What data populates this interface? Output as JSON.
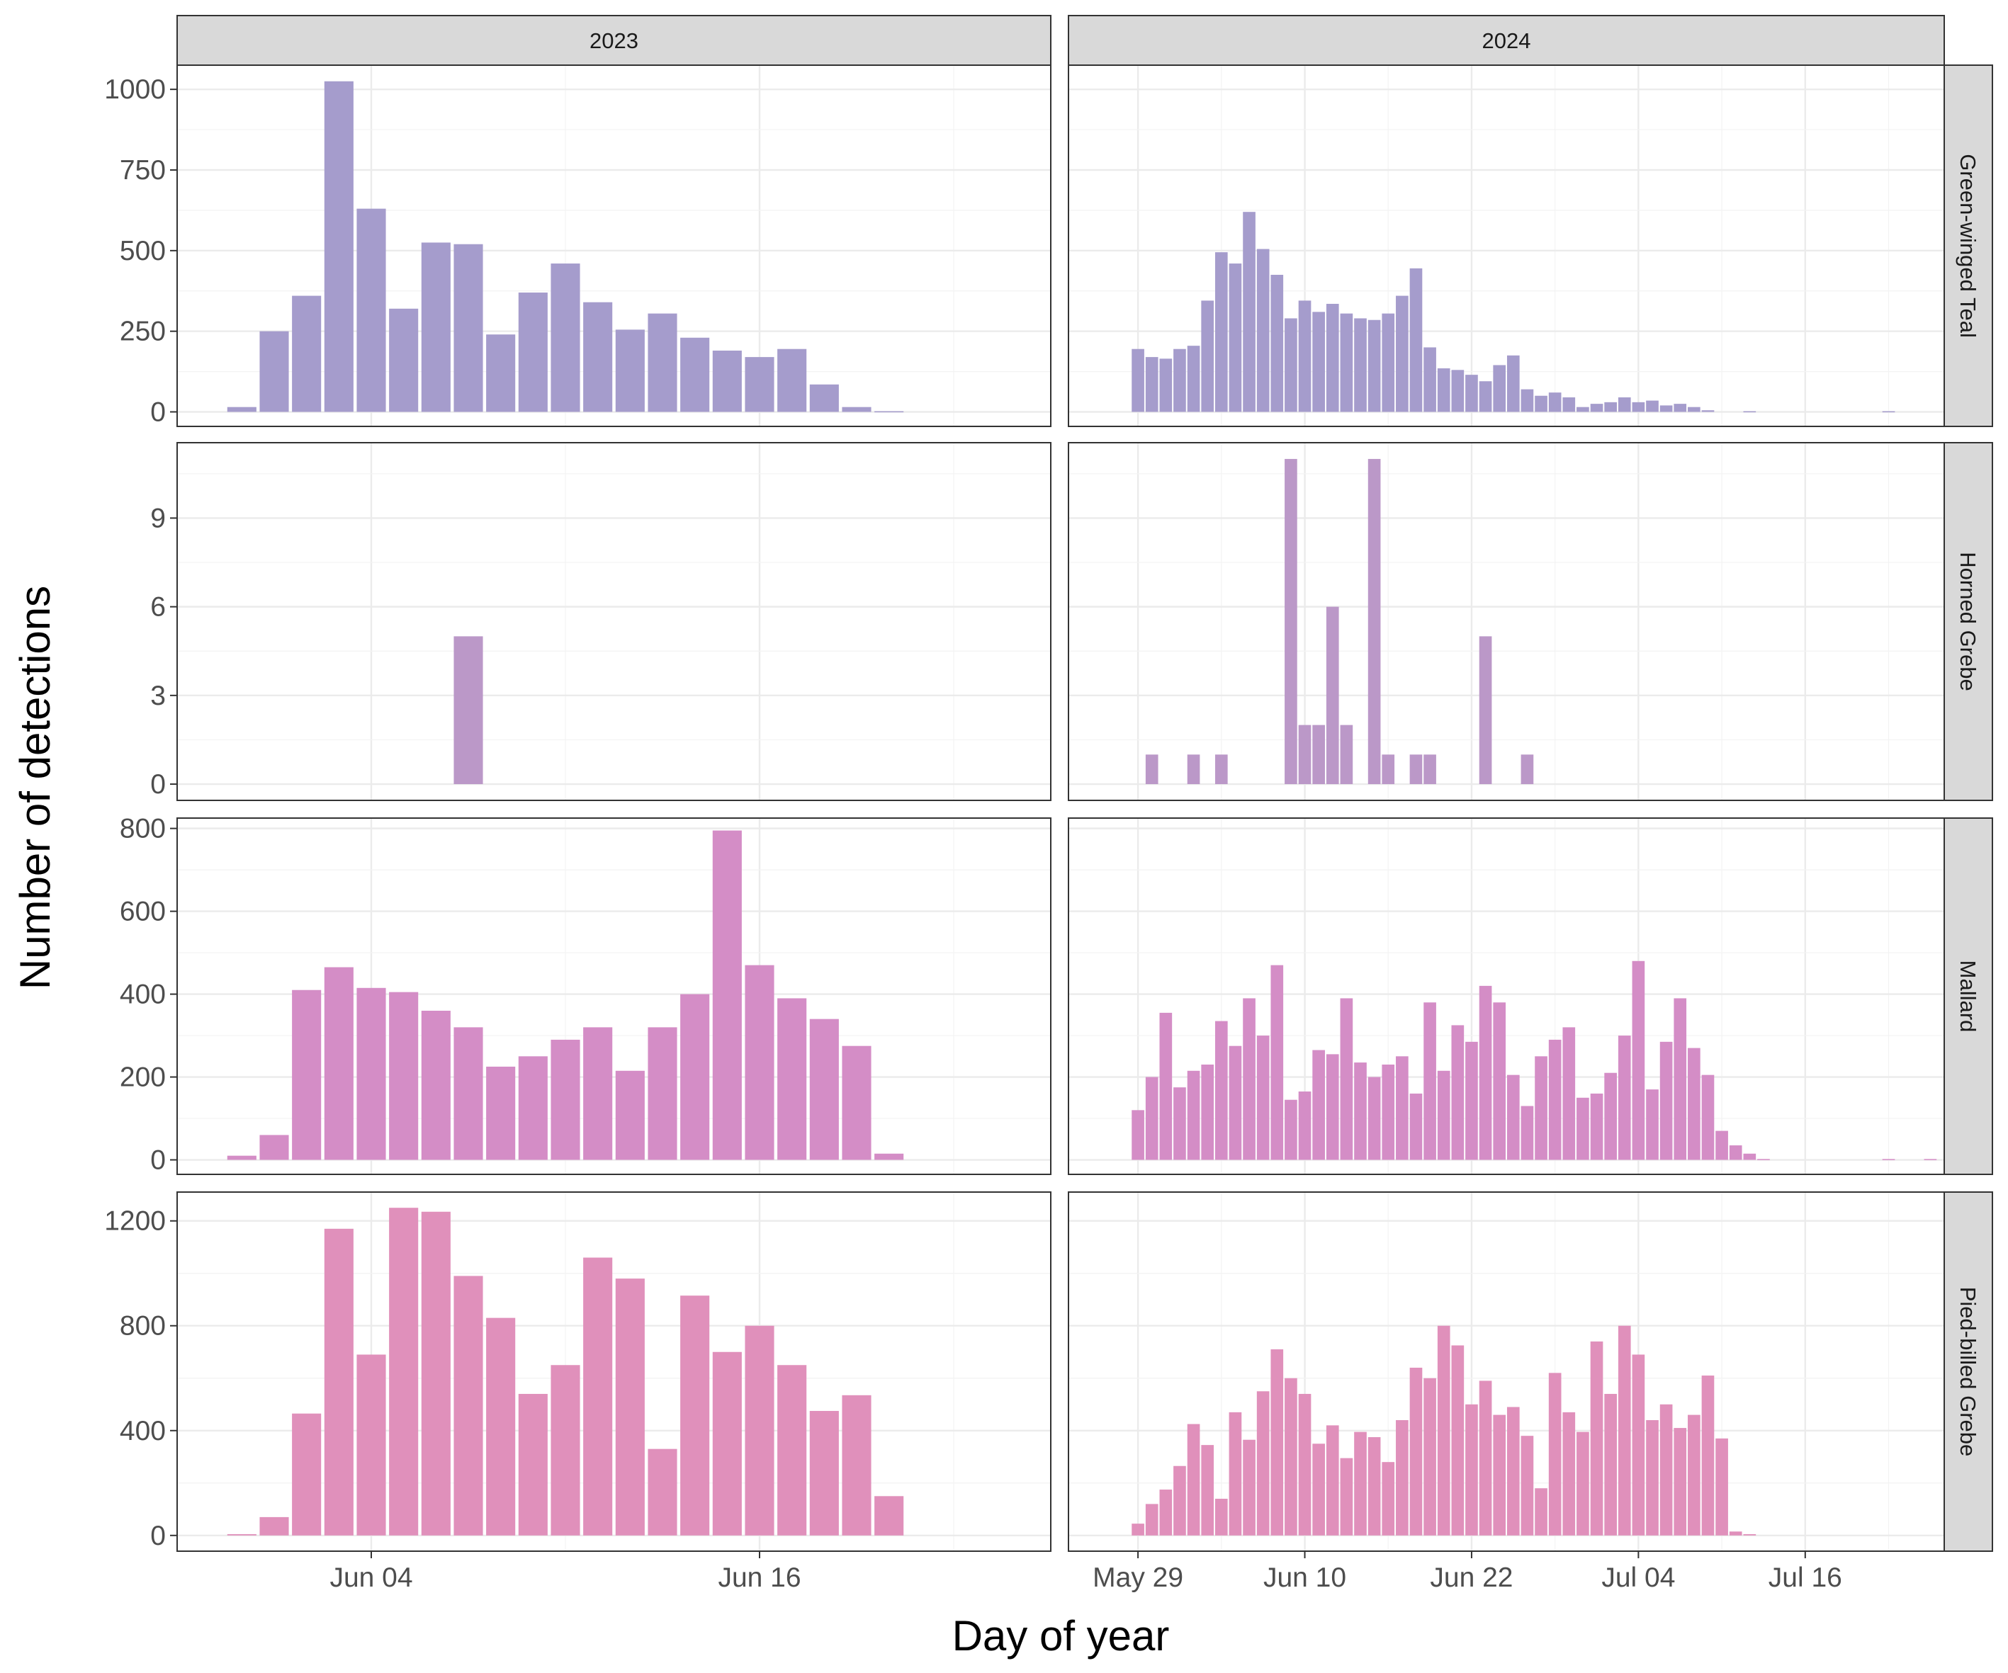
{
  "chart_data": {
    "type": "bar",
    "facet_columns": [
      "2023",
      "2024"
    ],
    "facet_rows": [
      "Green-winged Teal",
      "Horned Grebe",
      "Mallard",
      "Pied-billed Grebe"
    ],
    "xlabel": "Day of year",
    "ylabel": "Number of detections",
    "x_ticks": {
      "2023": [
        "Jun 04",
        "Jun 16"
      ],
      "2024": [
        "May 29",
        "Jun 10",
        "Jun 22",
        "Jul 04",
        "Jul 16"
      ]
    },
    "y_ticks": {
      "Green-winged Teal": [
        0,
        250,
        500,
        750,
        1000
      ],
      "Horned Grebe": [
        0,
        3,
        6,
        9
      ],
      "Mallard": [
        0,
        200,
        400,
        600,
        800
      ],
      "Pied-billed Grebe": [
        0,
        400,
        800,
        1200
      ]
    },
    "ylim": {
      "Green-winged Teal": [
        -45,
        1075
      ],
      "Horned Grebe": [
        -0.55,
        11.55
      ],
      "Mallard": [
        -35,
        825
      ],
      "Pied-billed Grebe": [
        -60,
        1310
      ]
    },
    "xlim": {
      "2023": [
        "2023-05-29",
        "2023-06-25"
      ],
      "2024": [
        "2024-05-24",
        "2024-07-26"
      ]
    },
    "colors": {
      "Green-winged Teal": "#a59ccc",
      "Horned Grebe": "#bb98c8",
      "Mallard": "#d48dc6",
      "Pied-billed Grebe": "#e090bb"
    },
    "grid": true,
    "series": {
      "2023": {
        "start": "2023-05-31",
        "Green-winged Teal": [
          15,
          250,
          360,
          1025,
          630,
          320,
          525,
          520,
          240,
          370,
          460,
          340,
          255,
          305,
          230,
          190,
          170,
          195,
          85,
          15,
          2
        ],
        "Horned Grebe": [
          0,
          0,
          0,
          0,
          0,
          0,
          0,
          5,
          0,
          0,
          0,
          0,
          0,
          0,
          0,
          0,
          0,
          0,
          0,
          0,
          0
        ],
        "Mallard": [
          10,
          60,
          410,
          465,
          415,
          405,
          360,
          320,
          225,
          250,
          290,
          320,
          215,
          320,
          400,
          795,
          470,
          390,
          340,
          275,
          15
        ],
        "Pied-billed Grebe": [
          5,
          70,
          465,
          1170,
          690,
          1250,
          1235,
          990,
          830,
          540,
          650,
          1060,
          980,
          330,
          915,
          700,
          800,
          650,
          475,
          535,
          150
        ]
      },
      "2024": {
        "start": "2024-05-28",
        "Green-winged Teal": [
          0,
          195,
          170,
          165,
          195,
          205,
          345,
          495,
          460,
          620,
          505,
          425,
          290,
          345,
          310,
          335,
          305,
          290,
          285,
          305,
          360,
          445,
          200,
          135,
          130,
          115,
          95,
          145,
          175,
          70,
          50,
          60,
          45,
          15,
          25,
          30,
          45,
          30,
          35,
          20,
          25,
          15,
          5,
          0,
          0,
          2,
          0,
          0,
          0,
          0,
          0,
          0,
          0,
          0,
          0,
          2,
          0,
          0,
          0,
          0
        ],
        "Horned Grebe": [
          0,
          0,
          1,
          0,
          0,
          1,
          0,
          1,
          0,
          0,
          0,
          0,
          11,
          2,
          2,
          6,
          2,
          0,
          11,
          1,
          0,
          1,
          1,
          0,
          0,
          0,
          5,
          0,
          0,
          1,
          0,
          0,
          0,
          0,
          0,
          0,
          0,
          0,
          0,
          0,
          0,
          0,
          0,
          0,
          0,
          0,
          0,
          0,
          0,
          0,
          0,
          0,
          0,
          0,
          0,
          0,
          0,
          0,
          0,
          0
        ],
        "Mallard": [
          0,
          120,
          200,
          355,
          175,
          215,
          230,
          335,
          275,
          390,
          300,
          470,
          145,
          165,
          265,
          255,
          390,
          235,
          200,
          230,
          250,
          160,
          380,
          215,
          325,
          285,
          420,
          380,
          205,
          130,
          250,
          290,
          320,
          150,
          160,
          210,
          300,
          480,
          170,
          285,
          390,
          270,
          205,
          70,
          35,
          15,
          2,
          0,
          0,
          0,
          0,
          0,
          0,
          0,
          0,
          2,
          0,
          0,
          2,
          0
        ],
        "Pied-billed Grebe": [
          0,
          45,
          120,
          175,
          265,
          425,
          345,
          140,
          470,
          365,
          550,
          710,
          600,
          540,
          350,
          420,
          295,
          395,
          375,
          280,
          440,
          640,
          600,
          800,
          725,
          500,
          590,
          460,
          490,
          380,
          180,
          620,
          470,
          395,
          740,
          540,
          800,
          690,
          440,
          500,
          410,
          460,
          610,
          370,
          15,
          5,
          0,
          0,
          0,
          0,
          0,
          0,
          0,
          0,
          0,
          0,
          0,
          0,
          0,
          0
        ]
      }
    }
  }
}
